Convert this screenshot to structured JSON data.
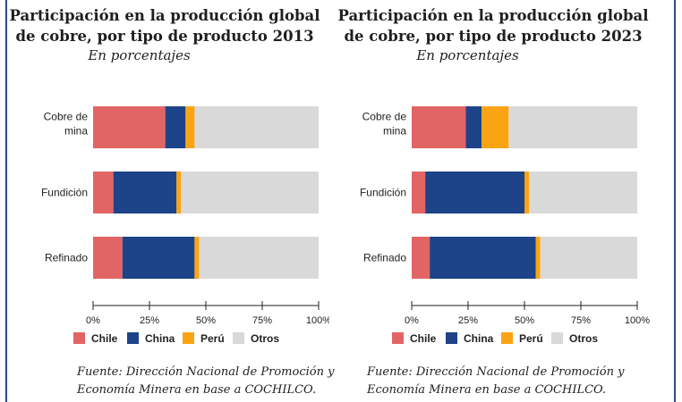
{
  "charts": [
    {
      "title": "Participación en la producción global de cobre, por tipo de producto 2013",
      "subtitle": "En porcentajes",
      "source": "Fuente: Dirección Nacional de Promoción y Economía Minera en base a COCHILCO."
    },
    {
      "title": "Participación en la producción global de cobre, por tipo de producto 2023",
      "subtitle": "En porcentajes",
      "source": "Fuente: Dirección Nacional de Promoción y Economía Minera en base a COCHILCO."
    }
  ],
  "chart_data": [
    {
      "type": "bar",
      "orientation": "horizontal",
      "stacked": true,
      "title": "Participación en la producción global de cobre, por tipo de producto 2013",
      "subtitle": "En porcentajes",
      "categories": [
        "Cobre de mina",
        "Fundición",
        "Refinado"
      ],
      "series": [
        {
          "name": "Chile",
          "color": "#e26565",
          "values": [
            32,
            9,
            13
          ]
        },
        {
          "name": "China",
          "color": "#1d4388",
          "values": [
            9,
            28,
            32
          ]
        },
        {
          "name": "Perú",
          "color": "#fba412",
          "values": [
            4,
            2,
            2
          ]
        },
        {
          "name": "Otros",
          "color": "#d9d9d9",
          "values": [
            55,
            61,
            53
          ]
        }
      ],
      "xlim": [
        0,
        100
      ],
      "xticks": [
        "0%",
        "25%",
        "50%",
        "75%",
        "100%"
      ],
      "legend_position": "bottom",
      "grid": false
    },
    {
      "type": "bar",
      "orientation": "horizontal",
      "stacked": true,
      "title": "Participación en la producción global de cobre, por tipo de producto 2023",
      "subtitle": "En porcentajes",
      "categories": [
        "Cobre de mina",
        "Fundición",
        "Refinado"
      ],
      "series": [
        {
          "name": "Chile",
          "color": "#e26565",
          "values": [
            24,
            6,
            8
          ]
        },
        {
          "name": "China",
          "color": "#1d4388",
          "values": [
            7,
            44,
            47
          ]
        },
        {
          "name": "Perú",
          "color": "#fba412",
          "values": [
            12,
            2,
            2
          ]
        },
        {
          "name": "Otros",
          "color": "#d9d9d9",
          "values": [
            57,
            48,
            43
          ]
        }
      ],
      "xlim": [
        0,
        100
      ],
      "xticks": [
        "0%",
        "25%",
        "50%",
        "75%",
        "100%"
      ],
      "legend_position": "bottom",
      "grid": false
    }
  ]
}
